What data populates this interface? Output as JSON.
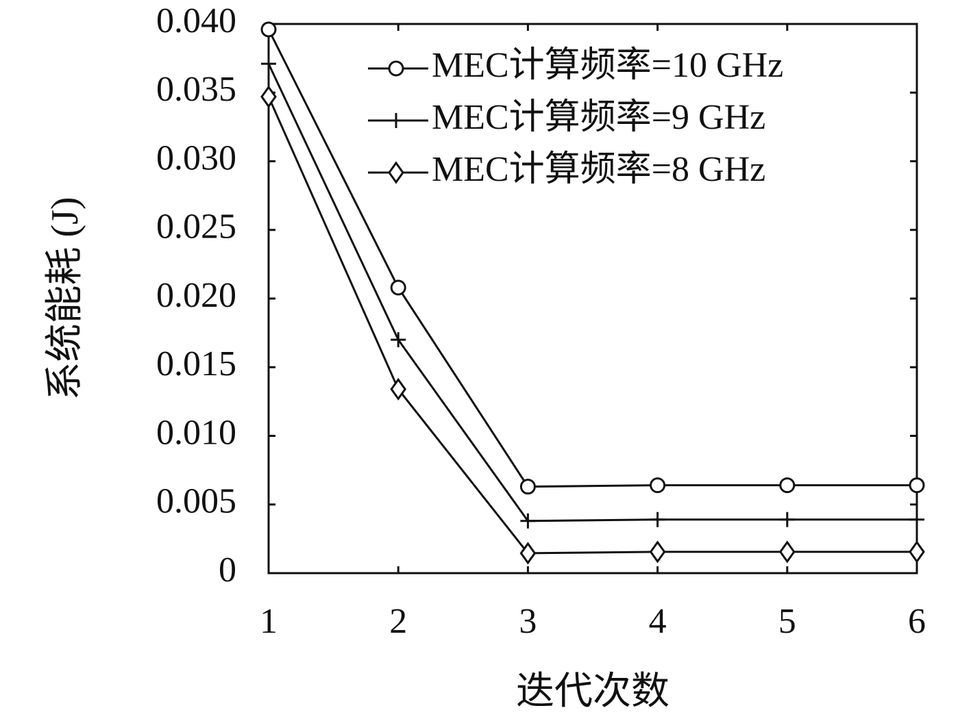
{
  "chart_data": {
    "type": "line",
    "x_label": "迭代次数",
    "y_label": "系统能耗 (J)",
    "x": [
      1,
      2,
      3,
      4,
      5,
      6
    ],
    "xlim": [
      1,
      6
    ],
    "xticks": [
      1,
      2,
      3,
      4,
      5,
      6
    ],
    "ylim": [
      0,
      0.04
    ],
    "yticks": [
      0,
      0.005,
      {
        "value": 0.01,
        "label": "0.010"
      },
      0.015,
      {
        "value": 0.02,
        "label": "0.020"
      },
      0.025,
      {
        "value": 0.03,
        "label": "0.030"
      },
      0.035,
      {
        "value": 0.04,
        "label": "0.040"
      }
    ],
    "legend": "upper right",
    "series": [
      {
        "name": "MEC计算频率=10 GHz",
        "color": "#111111",
        "marker": "circle",
        "values": [
          0.0396,
          0.0208,
          0.0063,
          0.0064,
          0.0064,
          0.0064
        ]
      },
      {
        "name": "MEC计算频率=9 GHz",
        "color": "#111111",
        "marker": "plus",
        "values": [
          0.0371,
          0.017,
          0.0038,
          0.0039,
          0.0039,
          0.0039
        ]
      },
      {
        "name": "MEC计算频率=8 GHz",
        "color": "#111111",
        "marker": "diamond",
        "values": [
          0.0347,
          0.0134,
          0.00145,
          0.00155,
          0.00155,
          0.00155
        ]
      }
    ]
  }
}
